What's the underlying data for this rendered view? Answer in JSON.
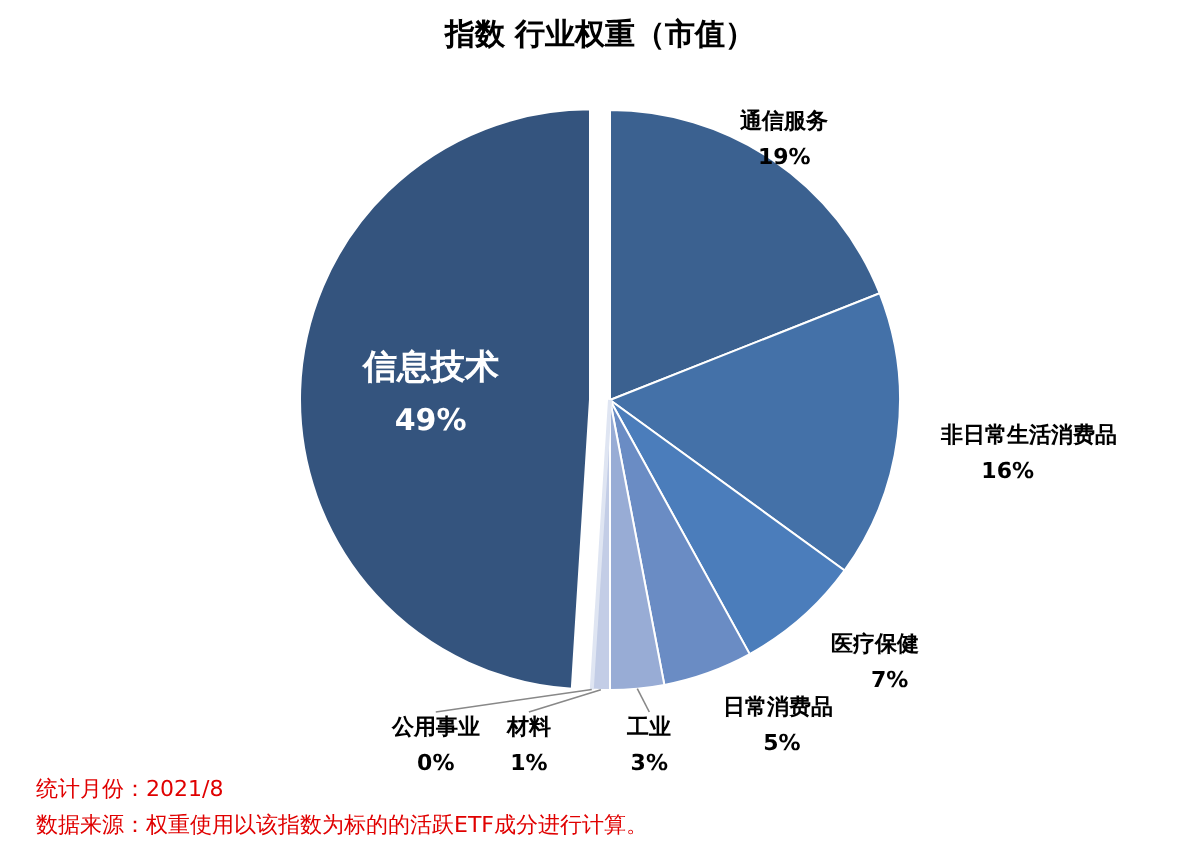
{
  "chart_data": {
    "type": "pie",
    "title": "指数 行业权重（市值）",
    "categories": [
      "信息技术",
      "通信服务",
      "非日常生活消费品",
      "医疗保健",
      "日常消费品",
      "工业",
      "材料",
      "公用事业"
    ],
    "values": [
      49,
      19,
      16,
      7,
      5,
      3,
      1,
      0
    ],
    "colors": [
      "#34547e",
      "#3b6190",
      "#4471a8",
      "#4b7dbb",
      "#6a8cc4",
      "#98acd5",
      "#c3cde6",
      "#dfe5f2"
    ],
    "value_labels": [
      "49%",
      "19%",
      "16%",
      "7%",
      "5%",
      "3%",
      "1%",
      "0%"
    ],
    "annotations": [
      "统计月份：2021/8",
      "数据来源：权重使用以该指数为标的的活跃ETF成分进行计算。"
    ]
  }
}
